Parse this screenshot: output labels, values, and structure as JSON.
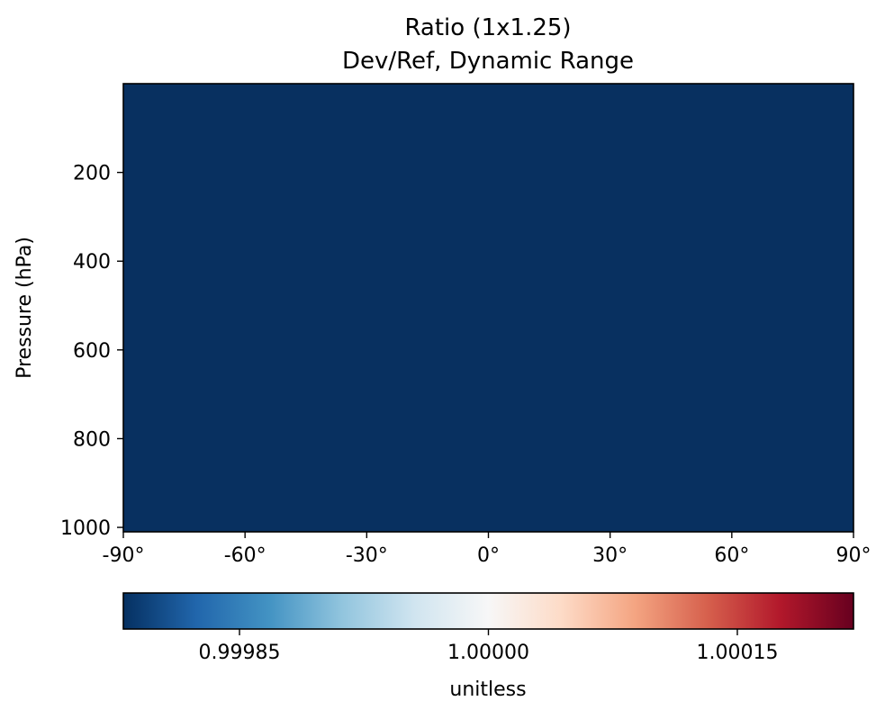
{
  "chart_data": {
    "type": "heatmap",
    "title": "Ratio (1x1.25)",
    "subtitle": "Dev/Ref, Dynamic Range",
    "xlabel": "",
    "ylabel": "Pressure (hPa)",
    "x_axis": {
      "range": [
        -90,
        90
      ],
      "ticks": [
        -90,
        -60,
        -30,
        0,
        30,
        60,
        90
      ],
      "tick_labels": [
        "-90°",
        "-60°",
        "-30°",
        "0°",
        "30°",
        "60°",
        "90°"
      ]
    },
    "y_axis": {
      "range": [
        1010,
        0
      ],
      "inverted": true,
      "ticks": [
        200,
        400,
        600,
        800,
        1000
      ],
      "tick_labels": [
        "200",
        "400",
        "600",
        "800",
        "1000"
      ]
    },
    "field": {
      "description_value": 0.99978,
      "color": "#083060"
    },
    "colorbar": {
      "label": "unitless",
      "range": [
        0.99978,
        1.00022
      ],
      "ticks": [
        0.99985,
        1.0,
        1.00015
      ],
      "tick_labels": [
        "0.99985",
        "1.00000",
        "1.00015"
      ],
      "colormap": "RdBu_r",
      "stops": [
        "#053061",
        "#2166ac",
        "#4393c3",
        "#92c5de",
        "#d1e5f0",
        "#f7f7f7",
        "#fddbc7",
        "#f4a582",
        "#d6604d",
        "#b2182b",
        "#67001f"
      ]
    },
    "grid": false
  }
}
